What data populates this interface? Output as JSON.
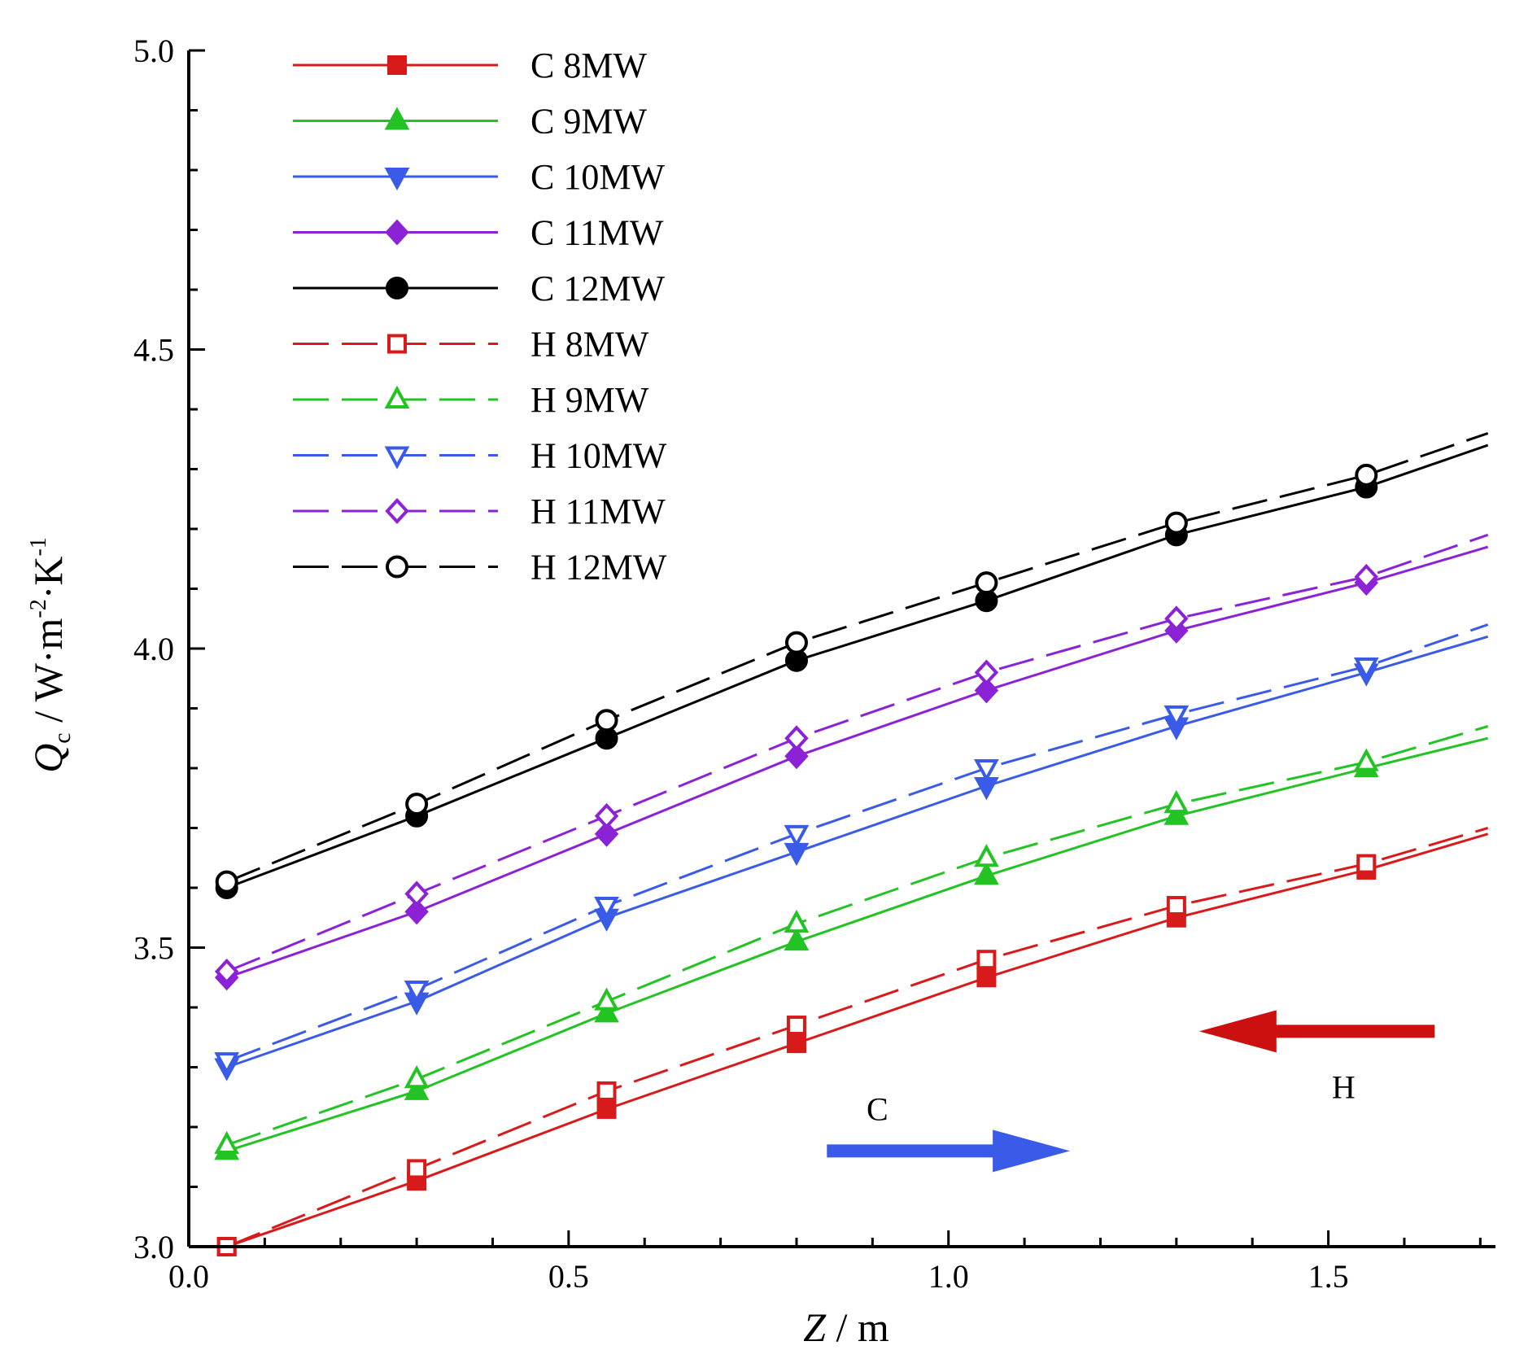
{
  "chart_data": {
    "type": "line",
    "title": "",
    "xlabel": "Z / m",
    "xlabel_parts": {
      "symbol": "Z",
      "unit": " / m"
    },
    "ylabel": "Qc / W·m-2·K-1",
    "ylabel_parts": {
      "symbol": "Q",
      "subscript": "c",
      "unit_a": " / W·m",
      "sup1": "-2",
      "unit_b": "·K",
      "sup2": "-1"
    },
    "xlim": [
      0.0,
      1.72
    ],
    "ylim": [
      3.0,
      5.0
    ],
    "x_ticks": [
      "0.0",
      "0.5",
      "1.0",
      "1.5"
    ],
    "y_ticks": [
      "3.0",
      "3.5",
      "4.0",
      "4.5",
      "5.0"
    ],
    "x_tick_values": [
      0.0,
      0.5,
      1.0,
      1.5
    ],
    "y_tick_values": [
      3.0,
      3.5,
      4.0,
      4.5,
      5.0
    ],
    "legend_position": "top-left",
    "marker_x": [
      0.05,
      0.3,
      0.55,
      0.8,
      1.05,
      1.3,
      1.55
    ],
    "series": [
      {
        "name": "C 8MW",
        "color": "#d91a1a",
        "dash": "solid",
        "marker": "square",
        "filled": true,
        "x": [
          0.05,
          0.3,
          0.55,
          0.8,
          1.05,
          1.3,
          1.55,
          1.71
        ],
        "y": [
          3.0,
          3.11,
          3.23,
          3.34,
          3.45,
          3.55,
          3.63,
          3.69
        ]
      },
      {
        "name": "C 9MW",
        "color": "#22c322",
        "dash": "solid",
        "marker": "triangle",
        "filled": true,
        "x": [
          0.05,
          0.3,
          0.55,
          0.8,
          1.05,
          1.3,
          1.55,
          1.71
        ],
        "y": [
          3.16,
          3.26,
          3.39,
          3.51,
          3.62,
          3.72,
          3.8,
          3.85
        ]
      },
      {
        "name": "C 10MW",
        "color": "#3a5be8",
        "dash": "solid",
        "marker": "tridown",
        "filled": true,
        "x": [
          0.05,
          0.3,
          0.55,
          0.8,
          1.05,
          1.3,
          1.55,
          1.71
        ],
        "y": [
          3.3,
          3.41,
          3.55,
          3.66,
          3.77,
          3.87,
          3.96,
          4.02
        ]
      },
      {
        "name": "C 11MW",
        "color": "#8c22d6",
        "dash": "solid",
        "marker": "diamond",
        "filled": true,
        "x": [
          0.05,
          0.3,
          0.55,
          0.8,
          1.05,
          1.3,
          1.55,
          1.71
        ],
        "y": [
          3.45,
          3.56,
          3.69,
          3.82,
          3.93,
          4.03,
          4.11,
          4.17
        ]
      },
      {
        "name": "C 12MW",
        "color": "#000000",
        "dash": "solid",
        "marker": "circle",
        "filled": true,
        "x": [
          0.05,
          0.3,
          0.55,
          0.8,
          1.05,
          1.3,
          1.55,
          1.71
        ],
        "y": [
          3.6,
          3.72,
          3.85,
          3.98,
          4.08,
          4.19,
          4.27,
          4.34
        ]
      },
      {
        "name": "H 8MW",
        "color": "#d91a1a",
        "dash": "dashed",
        "marker": "square",
        "filled": false,
        "x": [
          0.05,
          0.3,
          0.55,
          0.8,
          1.05,
          1.3,
          1.55,
          1.71
        ],
        "y": [
          3.0,
          3.13,
          3.26,
          3.37,
          3.48,
          3.57,
          3.64,
          3.7
        ]
      },
      {
        "name": "H 9MW",
        "color": "#22c322",
        "dash": "dashed",
        "marker": "triangle",
        "filled": false,
        "x": [
          0.05,
          0.3,
          0.55,
          0.8,
          1.05,
          1.3,
          1.55,
          1.71
        ],
        "y": [
          3.17,
          3.28,
          3.41,
          3.54,
          3.65,
          3.74,
          3.81,
          3.87
        ]
      },
      {
        "name": "H 10MW",
        "color": "#3a5be8",
        "dash": "dashed",
        "marker": "tridown",
        "filled": false,
        "x": [
          0.05,
          0.3,
          0.55,
          0.8,
          1.05,
          1.3,
          1.55,
          1.71
        ],
        "y": [
          3.31,
          3.43,
          3.57,
          3.69,
          3.8,
          3.89,
          3.97,
          4.04
        ]
      },
      {
        "name": "H 11MW",
        "color": "#8c22d6",
        "dash": "dashed",
        "marker": "diamond",
        "filled": false,
        "x": [
          0.05,
          0.3,
          0.55,
          0.8,
          1.05,
          1.3,
          1.55,
          1.71
        ],
        "y": [
          3.46,
          3.59,
          3.72,
          3.85,
          3.96,
          4.05,
          4.12,
          4.19
        ]
      },
      {
        "name": "H 12MW",
        "color": "#000000",
        "dash": "dashed",
        "marker": "circle",
        "filled": false,
        "x": [
          0.05,
          0.3,
          0.55,
          0.8,
          1.05,
          1.3,
          1.55,
          1.71
        ],
        "y": [
          3.61,
          3.74,
          3.88,
          4.01,
          4.11,
          4.21,
          4.29,
          4.36
        ]
      }
    ],
    "annotations": [
      {
        "text": "C",
        "color": "#3a5be8",
        "direction": "right",
        "arrow_from": [
          0.84,
          3.16
        ],
        "arrow_to": [
          1.16,
          3.16
        ]
      },
      {
        "text": "H",
        "color": "#cc1010",
        "direction": "left",
        "arrow_from": [
          1.64,
          3.36
        ],
        "arrow_to": [
          1.33,
          3.36
        ]
      }
    ]
  }
}
